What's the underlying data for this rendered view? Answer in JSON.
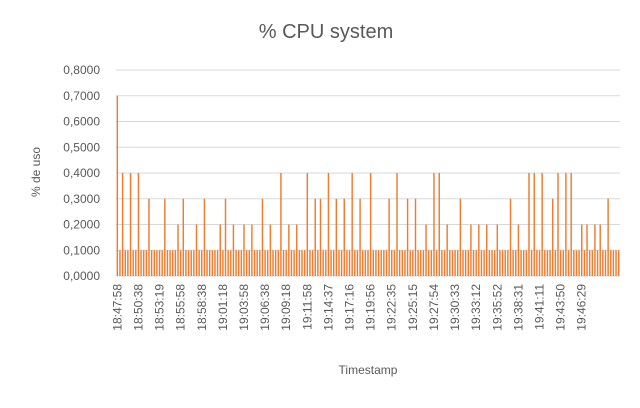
{
  "chart_data": {
    "type": "bar",
    "title": "% CPU system",
    "xlabel": "Timestamp",
    "ylabel": "% de uso",
    "ylim": [
      0,
      0.8
    ],
    "ytick_step": 0.1,
    "ytick_labels": [
      "0,0000",
      "0,1000",
      "0,2000",
      "0,3000",
      "0,4000",
      "0,5000",
      "0,6000",
      "0,7000",
      "0,8000"
    ],
    "grid": "horizontal",
    "legend": "none",
    "bar_color": "#ED7D31",
    "grid_color": "#D9D9D9",
    "x_tick_labels": [
      "18:47:58",
      "18:50:38",
      "18:53:19",
      "18:55:58",
      "18:58:38",
      "19:01:18",
      "19:03:58",
      "19:06:38",
      "19:09:18",
      "19:11:58",
      "19:14:37",
      "19:17:16",
      "19:19:56",
      "19:22:35",
      "19:25:15",
      "19:27:54",
      "19:30:33",
      "19:33:12",
      "19:35:52",
      "19:38:31",
      "19:41:11",
      "19:43:50",
      "19:46:29"
    ],
    "points_per_label": 8,
    "values": [
      0.7,
      0.1,
      0.4,
      0.1,
      0.1,
      0.4,
      0.1,
      0.1,
      0.4,
      0.1,
      0.1,
      0.1,
      0.3,
      0.1,
      0.1,
      0.1,
      0.1,
      0.1,
      0.3,
      0.1,
      0.1,
      0.1,
      0.1,
      0.2,
      0.1,
      0.3,
      0.1,
      0.1,
      0.1,
      0.1,
      0.2,
      0.1,
      0.1,
      0.3,
      0.1,
      0.1,
      0.1,
      0.1,
      0.1,
      0.2,
      0.1,
      0.3,
      0.1,
      0.1,
      0.2,
      0.1,
      0.1,
      0.1,
      0.2,
      0.1,
      0.1,
      0.2,
      0.1,
      0.1,
      0.1,
      0.3,
      0.1,
      0.1,
      0.2,
      0.1,
      0.1,
      0.1,
      0.4,
      0.1,
      0.1,
      0.2,
      0.1,
      0.1,
      0.2,
      0.1,
      0.1,
      0.1,
      0.4,
      0.1,
      0.1,
      0.3,
      0.1,
      0.3,
      0.1,
      0.1,
      0.4,
      0.1,
      0.1,
      0.3,
      0.1,
      0.1,
      0.3,
      0.1,
      0.1,
      0.4,
      0.1,
      0.1,
      0.3,
      0.1,
      0.1,
      0.1,
      0.4,
      0.1,
      0.1,
      0.1,
      0.1,
      0.1,
      0.1,
      0.3,
      0.1,
      0.1,
      0.4,
      0.1,
      0.1,
      0.1,
      0.3,
      0.1,
      0.1,
      0.3,
      0.1,
      0.1,
      0.1,
      0.2,
      0.1,
      0.1,
      0.4,
      0.1,
      0.4,
      0.1,
      0.1,
      0.2,
      0.1,
      0.1,
      0.1,
      0.1,
      0.3,
      0.1,
      0.1,
      0.1,
      0.2,
      0.1,
      0.1,
      0.2,
      0.1,
      0.1,
      0.2,
      0.1,
      0.1,
      0.1,
      0.2,
      0.1,
      0.1,
      0.1,
      0.1,
      0.3,
      0.1,
      0.1,
      0.2,
      0.1,
      0.1,
      0.1,
      0.4,
      0.1,
      0.4,
      0.1,
      0.1,
      0.4,
      0.1,
      0.1,
      0.1,
      0.3,
      0.1,
      0.4,
      0.1,
      0.1,
      0.4,
      0.1,
      0.4,
      0.1,
      0.1,
      0.1,
      0.2,
      0.1,
      0.2,
      0.1,
      0.1,
      0.2,
      0.1,
      0.2,
      0.1,
      0.1,
      0.3,
      0.1,
      0.1,
      0.1,
      0.1
    ]
  }
}
